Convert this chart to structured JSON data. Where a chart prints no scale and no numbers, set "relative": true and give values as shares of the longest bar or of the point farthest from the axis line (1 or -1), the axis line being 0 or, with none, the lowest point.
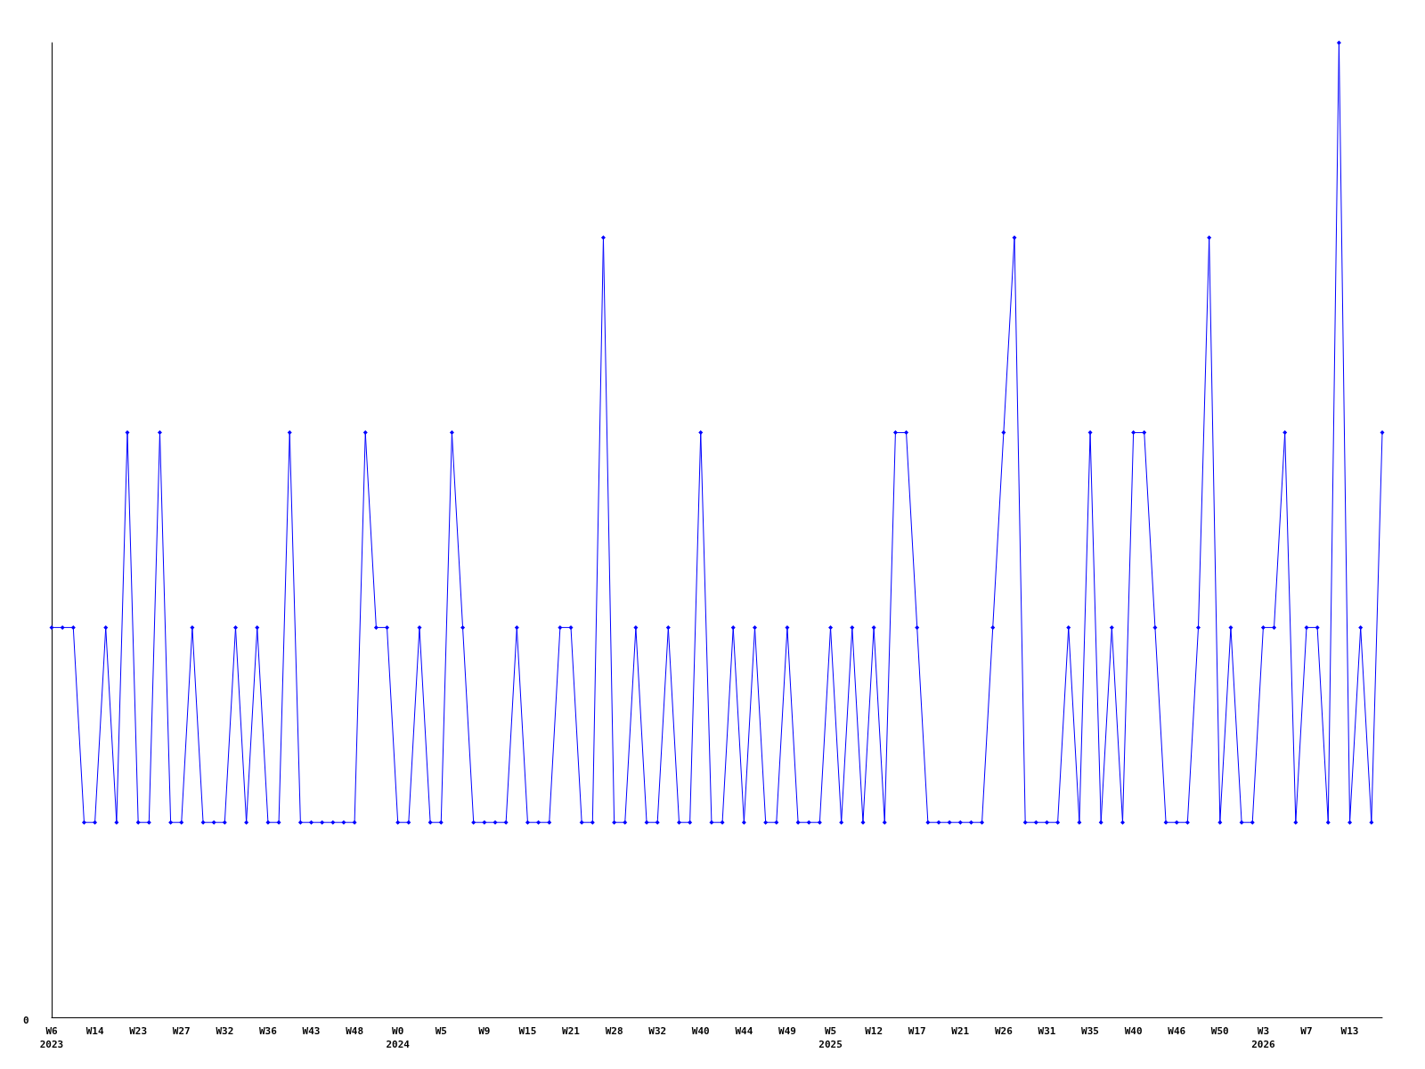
{
  "chart_data": {
    "type": "line",
    "relative": true,
    "annotations": [
      "0"
    ],
    "color": "#0000ff",
    "marker": "diamond",
    "grid": false,
    "categories": [
      "W6\n2023",
      null,
      null,
      null,
      "W14",
      null,
      null,
      null,
      "W23",
      null,
      null,
      null,
      "W27",
      null,
      null,
      null,
      "W32",
      null,
      null,
      null,
      "W36",
      null,
      null,
      null,
      "W43",
      null,
      null,
      null,
      "W48",
      null,
      null,
      null,
      "W0\n2024",
      null,
      null,
      null,
      "W5",
      null,
      null,
      null,
      "W9",
      null,
      null,
      null,
      "W15",
      null,
      null,
      null,
      "W21",
      null,
      null,
      null,
      "W28",
      null,
      null,
      null,
      "W32",
      null,
      null,
      null,
      "W40",
      null,
      null,
      null,
      "W44",
      null,
      null,
      null,
      "W49",
      null,
      null,
      null,
      "W5\n2025",
      null,
      null,
      null,
      "W12",
      null,
      null,
      null,
      "W17",
      null,
      null,
      null,
      "W21",
      null,
      null,
      null,
      "W26",
      null,
      null,
      null,
      "W31",
      null,
      null,
      null,
      "W35",
      null,
      null,
      null,
      "W40",
      null,
      null,
      null,
      "W46",
      null,
      null,
      null,
      "W50",
      null,
      null,
      null,
      "W3\n2026",
      null,
      null,
      null,
      "W7",
      null,
      null,
      null,
      "W13",
      null,
      null,
      null
    ],
    "values": [
      0.4,
      0.4,
      0.4,
      0.2,
      0.2,
      0.4,
      0.2,
      0.6,
      0.2,
      0.2,
      0.6,
      0.2,
      0.2,
      0.4,
      0.2,
      0.2,
      0.2,
      0.4,
      0.2,
      0.4,
      0.2,
      0.2,
      0.6,
      0.2,
      0.2,
      0.2,
      0.2,
      0.2,
      0.2,
      0.6,
      0.4,
      0.4,
      0.2,
      0.2,
      0.4,
      0.2,
      0.2,
      0.6,
      0.4,
      0.2,
      0.2,
      0.2,
      0.2,
      0.4,
      0.2,
      0.2,
      0.2,
      0.4,
      0.4,
      0.2,
      0.2,
      0.8,
      0.2,
      0.2,
      0.4,
      0.2,
      0.2,
      0.4,
      0.2,
      0.2,
      0.6,
      0.2,
      0.2,
      0.4,
      0.2,
      0.4,
      0.2,
      0.2,
      0.4,
      0.2,
      0.2,
      0.2,
      0.4,
      0.2,
      0.4,
      0.2,
      0.4,
      0.2,
      0.6,
      0.6,
      0.4,
      0.2,
      0.2,
      0.2,
      0.2,
      0.2,
      0.2,
      0.4,
      0.6,
      0.8,
      0.2,
      0.2,
      0.2,
      0.2,
      0.4,
      0.2,
      0.6,
      0.2,
      0.4,
      0.2,
      0.6,
      0.6,
      0.4,
      0.2,
      0.2,
      0.2,
      0.4,
      0.8,
      0.2,
      0.4,
      0.2,
      0.2,
      0.4,
      0.4,
      0.6,
      0.2,
      0.4,
      0.4,
      0.2,
      1,
      0.2,
      0.4,
      0.2,
      0.6
    ]
  }
}
